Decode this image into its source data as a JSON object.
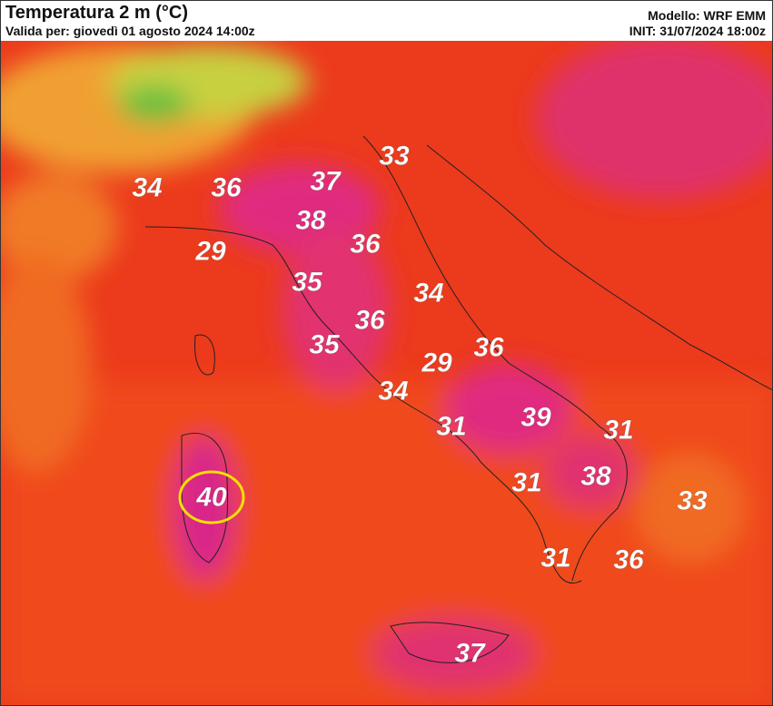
{
  "header": {
    "title": "Temperatura 2 m (°C)",
    "valid": "Valida per: giovedì 01 agosto 2024 14:00z",
    "model": "Modello: WRF EMM",
    "init": "INIT: 31/07/2024 18:00z"
  },
  "temperatures": [
    34,
    36,
    37,
    33,
    38,
    36,
    29,
    35,
    34,
    36,
    35,
    36,
    29,
    34,
    39,
    31,
    31,
    38,
    31,
    33,
    40,
    31,
    36,
    37
  ],
  "highlight": 20
}
